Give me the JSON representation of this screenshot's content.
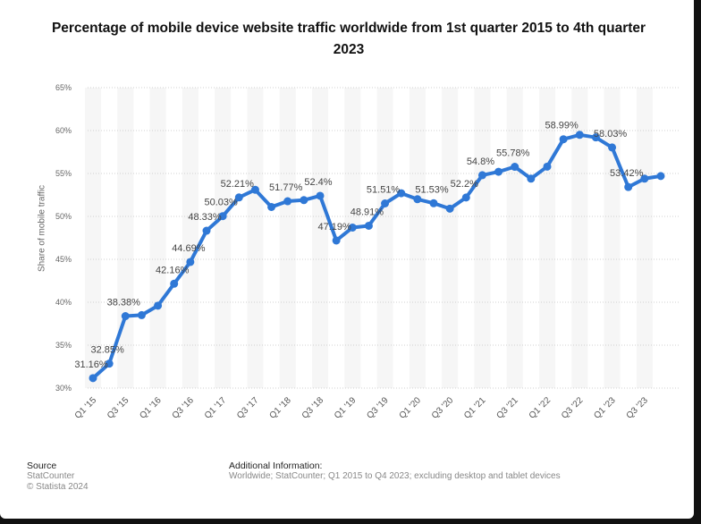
{
  "title": "Percentage of mobile device website traffic worldwide from 1st quarter 2015 to 4th quarter 2023",
  "chart_data": {
    "type": "line",
    "title": "Percentage of mobile device website traffic worldwide from 1st quarter 2015 to 4th quarter 2023",
    "ylabel": "Share of mobile traffic",
    "xlabel": "",
    "ylim": [
      30,
      65
    ],
    "yticks": [
      "30%",
      "35%",
      "40%",
      "45%",
      "50%",
      "55%",
      "60%",
      "65%"
    ],
    "ytick_values": [
      30,
      35,
      40,
      45,
      50,
      55,
      60,
      65
    ],
    "grid": true,
    "color": "#2f78d6",
    "xticks": [
      "Q1 '15",
      "Q3 '15",
      "Q1 '16",
      "Q3 '16",
      "Q1 '17",
      "Q3 '17",
      "Q1 '18",
      "Q3 '18",
      "Q1 '19",
      "Q3 '19",
      "Q1 '20",
      "Q3 '20",
      "Q1 '21",
      "Q3 '21",
      "Q1 '22",
      "Q3 '22",
      "Q1 '23",
      "Q3 '23"
    ],
    "x": [
      "Q1 '15",
      "Q2 '15",
      "Q3 '15",
      "Q4 '15",
      "Q1 '16",
      "Q2 '16",
      "Q3 '16",
      "Q4 '16",
      "Q1 '17",
      "Q2 '17",
      "Q3 '17",
      "Q4 '17",
      "Q1 '18",
      "Q2 '18",
      "Q3 '18",
      "Q4 '18",
      "Q1 '19",
      "Q2 '19",
      "Q3 '19",
      "Q4 '19",
      "Q1 '20",
      "Q2 '20",
      "Q3 '20",
      "Q4 '20",
      "Q1 '21",
      "Q2 '21",
      "Q3 '21",
      "Q4 '21",
      "Q1 '22",
      "Q2 '22",
      "Q3 '22",
      "Q4 '22",
      "Q1 '23",
      "Q2 '23",
      "Q3 '23",
      "Q4 '23"
    ],
    "values": [
      31.16,
      32.85,
      38.38,
      38.5,
      39.6,
      42.16,
      44.69,
      48.33,
      50.03,
      52.21,
      53.1,
      51.1,
      51.77,
      51.9,
      52.4,
      47.19,
      48.7,
      48.91,
      51.51,
      52.7,
      52.0,
      51.53,
      50.9,
      52.2,
      54.8,
      55.2,
      55.78,
      54.4,
      55.8,
      58.99,
      59.5,
      59.2,
      58.03,
      53.42,
      54.4,
      54.7
    ],
    "data_labels": [
      {
        "index": 0,
        "text": "31.16%"
      },
      {
        "index": 1,
        "text": "32.85%"
      },
      {
        "index": 2,
        "text": "38.38%"
      },
      {
        "index": 5,
        "text": "42.16%"
      },
      {
        "index": 6,
        "text": "44.69%"
      },
      {
        "index": 7,
        "text": "48.33%"
      },
      {
        "index": 8,
        "text": "50.03%"
      },
      {
        "index": 9,
        "text": "52.21%"
      },
      {
        "index": 12,
        "text": "51.77%"
      },
      {
        "index": 14,
        "text": "52.4%"
      },
      {
        "index": 15,
        "text": "47.19%"
      },
      {
        "index": 17,
        "text": "48.91%"
      },
      {
        "index": 18,
        "text": "51.51%"
      },
      {
        "index": 21,
        "text": "51.53%"
      },
      {
        "index": 23,
        "text": "52.2%"
      },
      {
        "index": 24,
        "text": "54.8%"
      },
      {
        "index": 26,
        "text": "55.78%"
      },
      {
        "index": 29,
        "text": "58.99%"
      },
      {
        "index": 32,
        "text": "58.03%"
      },
      {
        "index": 33,
        "text": "53.42%"
      }
    ]
  },
  "footer": {
    "source_heading": "Source",
    "source": "StatCounter",
    "copyright": "© Statista 2024",
    "info_heading": "Additional Information:",
    "info": "Worldwide; StatCounter; Q1 2015 to Q4 2023; excluding desktop and tablet devices"
  }
}
